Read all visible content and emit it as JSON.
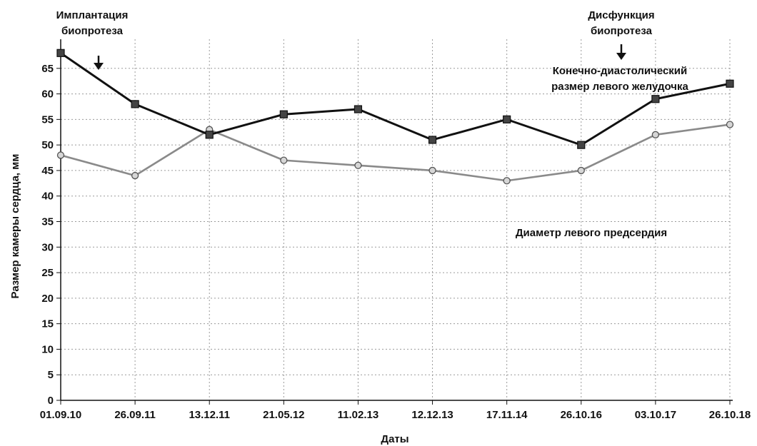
{
  "chart_data": {
    "type": "line",
    "categories": [
      "01.09.10",
      "26.09.11",
      "13.12.11",
      "21.05.12",
      "11.02.13",
      "12.12.13",
      "17.11.14",
      "26.10.16",
      "03.10.17",
      "26.10.18"
    ],
    "series": [
      {
        "name": "Конечно-диастолический размер левого желудочка",
        "values": [
          68,
          58,
          52,
          56,
          57,
          51,
          55,
          50,
          59,
          62
        ],
        "color": "#111111",
        "marker": "square"
      },
      {
        "name": "Диаметр левого предсердия",
        "values": [
          48,
          44,
          53,
          47,
          46,
          45,
          43,
          45,
          52,
          54
        ],
        "color": "#8a8a8a",
        "marker": "circle"
      }
    ],
    "xlabel": "Даты",
    "ylabel": "Размер камеры сердца, мм",
    "ylim": [
      0,
      70
    ],
    "yticks": [
      0,
      5,
      10,
      15,
      20,
      25,
      30,
      35,
      40,
      45,
      50,
      55,
      60,
      65
    ],
    "grid": true,
    "annotations": [
      {
        "id": "implant",
        "lines": [
          "Имплантация",
          "биопротеза"
        ],
        "arrow": true
      },
      {
        "id": "dysfunction",
        "lines": [
          "Дисфункция",
          "биопротеза"
        ],
        "arrow": true
      },
      {
        "id": "lv-label",
        "lines": [
          "Конечно-диастолический",
          "размер левого желудочка"
        ],
        "arrow": false
      },
      {
        "id": "la-label",
        "lines": [
          "Диаметр левого предсердия"
        ],
        "arrow": false
      }
    ]
  }
}
